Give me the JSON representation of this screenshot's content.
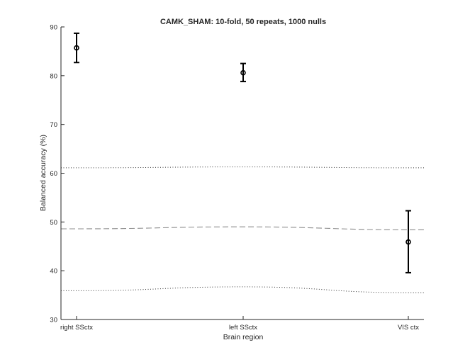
{
  "chart_data": {
    "type": "scatter",
    "title": "CAMK_SHAM: 10-fold, 50 repeats, 1000 nulls",
    "xlabel": "Brain region",
    "ylabel": "Balanced accuracy (%)",
    "categories": [
      "right SSctx",
      "left SSctx",
      "VIS ctx"
    ],
    "ylim": [
      30,
      90
    ],
    "yticks": [
      "30",
      "40",
      "50",
      "60",
      "70",
      "80",
      "90"
    ],
    "grid": false,
    "series": [
      {
        "style": "error-bar markers",
        "color": "#000000",
        "values": [
          85.7,
          80.6,
          45.9
        ],
        "lower": [
          82.7,
          78.8,
          39.6
        ],
        "upper": [
          88.7,
          82.5,
          52.3
        ]
      },
      {
        "style": "null mean (dashed)",
        "color": "#8c8c8c",
        "values": [
          48.6,
          49.0,
          48.4
        ]
      },
      {
        "style": "null upper bound (dotted)",
        "color": "#333333",
        "values": [
          61.1,
          61.3,
          61.1
        ]
      },
      {
        "style": "null lower bound (dotted)",
        "color": "#333333",
        "values": [
          35.9,
          36.7,
          35.5
        ]
      }
    ]
  }
}
